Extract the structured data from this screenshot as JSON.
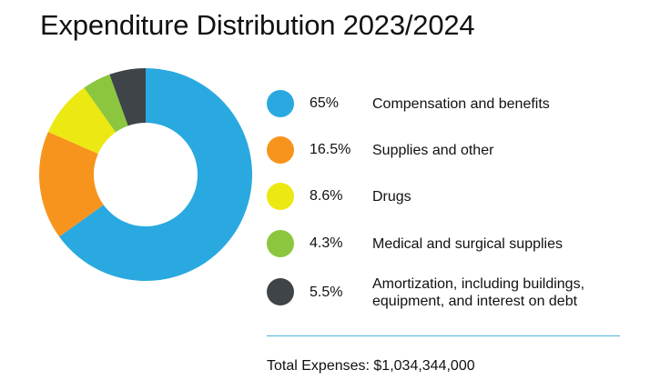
{
  "title": "Expenditure Distribution 2023/2024",
  "chart_data": {
    "type": "pie",
    "title": "Expenditure Distribution 2023/2024",
    "donut": true,
    "slices": [
      {
        "label": "Compensation and benefits",
        "pct_label": "65%",
        "value": 65,
        "color": "#29a9e0"
      },
      {
        "label": "Supplies and other",
        "pct_label": "16.5%",
        "value": 16.5,
        "color": "#f7941d"
      },
      {
        "label": "Drugs",
        "pct_label": "8.6%",
        "value": 8.6,
        "color": "#ece812"
      },
      {
        "label": "Medical and surgical supplies",
        "pct_label": "4.3%",
        "value": 4.3,
        "color": "#8cc63f"
      },
      {
        "label": "Amortization, including buildings, equipment, and interest on debt",
        "pct_label": "5.5%",
        "value": 5.5,
        "color": "#3f4448"
      }
    ],
    "legend_placement": "right"
  },
  "total": "Total Expenses: $1,034,344,000",
  "divider_color": "#4cb3d9"
}
